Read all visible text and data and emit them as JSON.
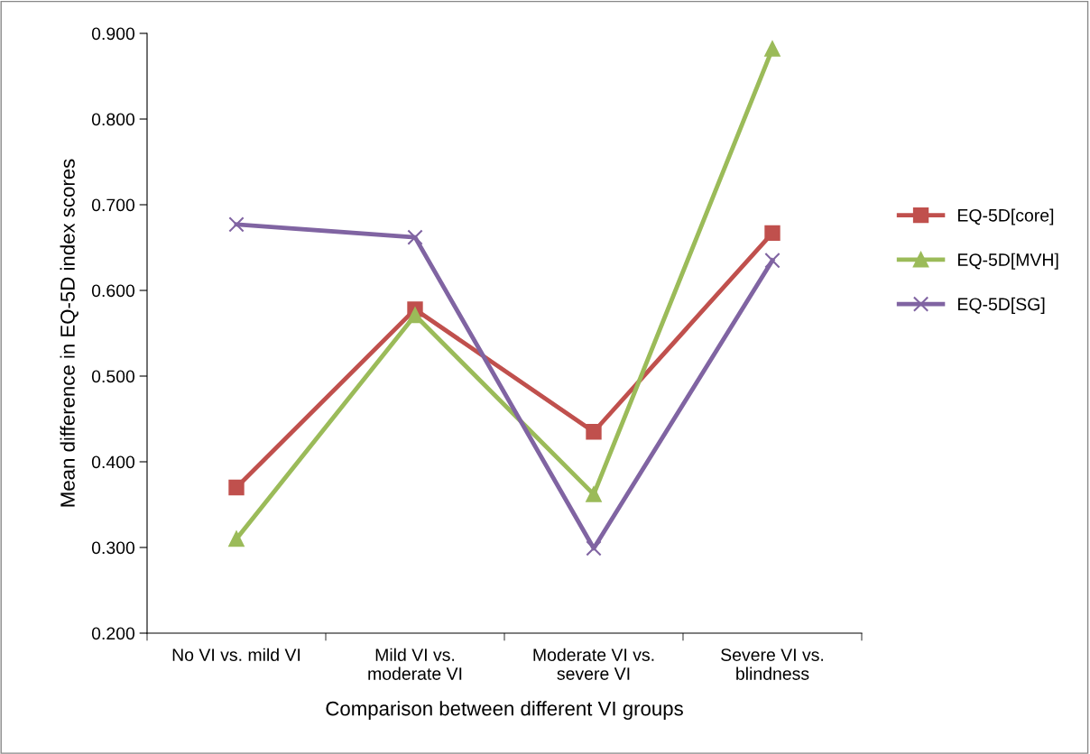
{
  "chart_data": {
    "type": "line",
    "xlabel": "Comparison between different VI groups",
    "ylabel": "Mean difference in EQ-5D index scores",
    "categories": [
      "No VI vs. mild VI",
      "Mild VI vs.\nmoderate VI",
      "Moderate VI vs.\nsevere VI",
      "Severe VI vs.\nblindness"
    ],
    "series": [
      {
        "name": "EQ-5D[core]",
        "color": "#c0504d",
        "marker": "square",
        "values": [
          0.37,
          0.578,
          0.435,
          0.667
        ]
      },
      {
        "name": "EQ-5D[MVH]",
        "color": "#9bbb59",
        "marker": "triangle",
        "values": [
          0.31,
          0.571,
          0.362,
          0.882
        ]
      },
      {
        "name": "EQ-5D[SG]",
        "color": "#8064a2",
        "marker": "cross",
        "values": [
          0.677,
          0.662,
          0.299,
          0.635
        ]
      }
    ],
    "ylim": [
      0.2,
      0.9
    ],
    "yticks": [
      {
        "value": 0.2,
        "label": "0.200"
      },
      {
        "value": 0.3,
        "label": "0.300"
      },
      {
        "value": 0.4,
        "label": "0.400"
      },
      {
        "value": 0.5,
        "label": "0.500"
      },
      {
        "value": 0.6,
        "label": "0.600"
      },
      {
        "value": 0.7,
        "label": "0.700"
      },
      {
        "value": 0.8,
        "label": "0.800"
      },
      {
        "value": 0.9,
        "label": "0.900"
      }
    ],
    "grid": false,
    "legend": "right",
    "line_style": "solid"
  }
}
